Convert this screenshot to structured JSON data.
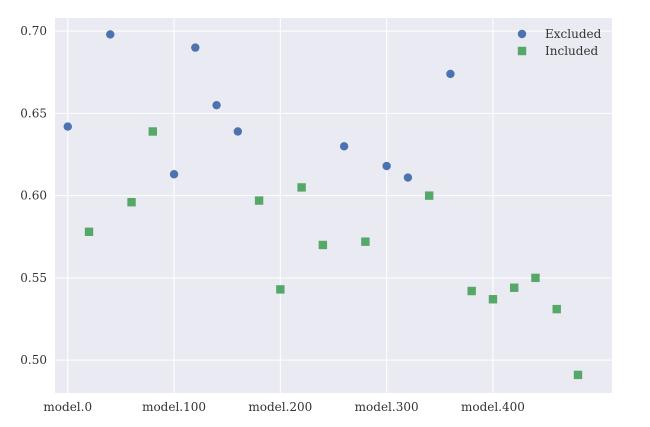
{
  "chart_data": {
    "type": "scatter",
    "title": "",
    "xlabel": "",
    "ylabel": "",
    "grid": true,
    "legend_position": "top-right",
    "ylim": [
      0.48,
      0.708
    ],
    "x_range": [
      -0.6,
      25.6
    ],
    "x_ticks": [
      {
        "x": 0,
        "label": "model.0"
      },
      {
        "x": 5,
        "label": "model.100"
      },
      {
        "x": 10,
        "label": "model.200"
      },
      {
        "x": 15,
        "label": "model.300"
      },
      {
        "x": 20,
        "label": "model.400"
      }
    ],
    "y_ticks": [
      {
        "y": 0.5,
        "label": "0.50"
      },
      {
        "y": 0.55,
        "label": "0.55"
      },
      {
        "y": 0.6,
        "label": "0.60"
      },
      {
        "y": 0.65,
        "label": "0.65"
      },
      {
        "y": 0.7,
        "label": "0.70"
      }
    ],
    "series": [
      {
        "name": "Excluded",
        "marker": "circle",
        "color": "#4C72B0",
        "points": [
          {
            "x": 0,
            "y": 0.642
          },
          {
            "x": 2,
            "y": 0.698
          },
          {
            "x": 5,
            "y": 0.613
          },
          {
            "x": 6,
            "y": 0.69
          },
          {
            "x": 7,
            "y": 0.655
          },
          {
            "x": 8,
            "y": 0.639
          },
          {
            "x": 13,
            "y": 0.63
          },
          {
            "x": 15,
            "y": 0.618
          },
          {
            "x": 16,
            "y": 0.611
          },
          {
            "x": 18,
            "y": 0.674
          }
        ]
      },
      {
        "name": "Included",
        "marker": "square",
        "color": "#55A868",
        "points": [
          {
            "x": 1,
            "y": 0.578
          },
          {
            "x": 3,
            "y": 0.596
          },
          {
            "x": 4,
            "y": 0.639
          },
          {
            "x": 9,
            "y": 0.597
          },
          {
            "x": 10,
            "y": 0.543
          },
          {
            "x": 11,
            "y": 0.605
          },
          {
            "x": 12,
            "y": 0.57
          },
          {
            "x": 14,
            "y": 0.572
          },
          {
            "x": 17,
            "y": 0.6
          },
          {
            "x": 19,
            "y": 0.542
          },
          {
            "x": 20,
            "y": 0.537
          },
          {
            "x": 21,
            "y": 0.544
          },
          {
            "x": 22,
            "y": 0.55
          },
          {
            "x": 23,
            "y": 0.531
          },
          {
            "x": 24,
            "y": 0.491
          }
        ]
      }
    ],
    "colors": {
      "plot_background": "#EAEAF2",
      "grid": "#FFFFFF"
    }
  }
}
